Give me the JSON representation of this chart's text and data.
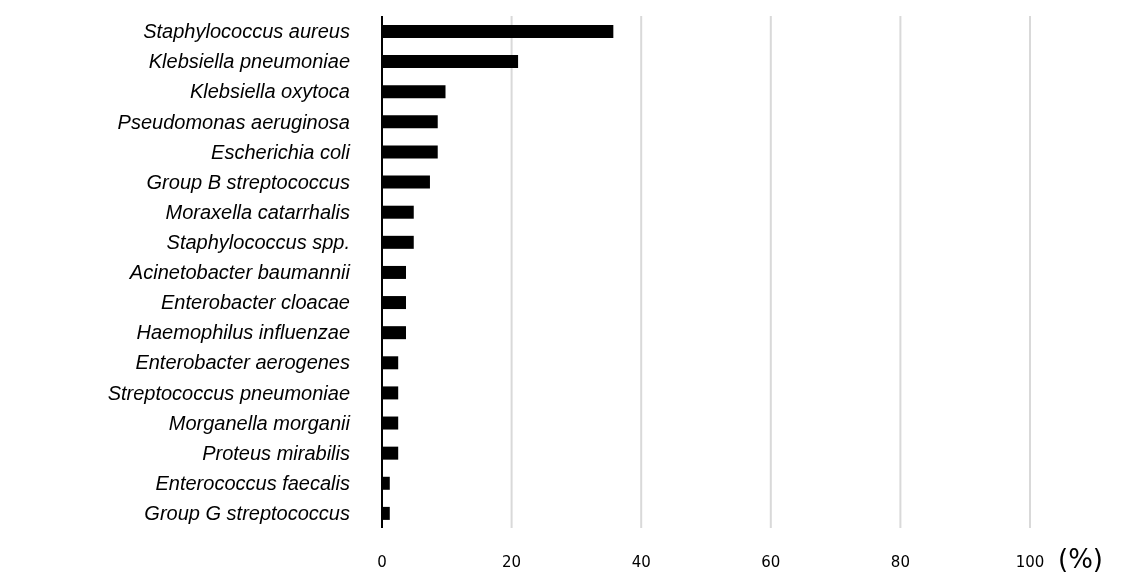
{
  "chart_data": {
    "type": "bar",
    "orientation": "horizontal",
    "xlabel": "(%)",
    "categories": [
      "Staphylococcus aureus",
      "Klebsiella pneumoniae",
      "Klebsiella oxytoca",
      "Pseudomonas aeruginosa",
      "Escherichia coli",
      "Group B streptococcus",
      "Moraxella catarrhalis",
      "Staphylococcus spp.",
      "Acinetobacter baumannii",
      "Enterobacter cloacae",
      "Haemophilus influenzae",
      "Enterobacter aerogenes",
      "Streptococcus pneumoniae",
      "Morganella morganii",
      "Proteus mirabilis",
      "Enterococcus faecalis",
      "Group G streptococcus"
    ],
    "values": [
      35.7,
      21.0,
      9.8,
      8.6,
      8.6,
      7.4,
      4.9,
      4.9,
      3.7,
      3.7,
      3.7,
      2.5,
      2.5,
      2.5,
      2.5,
      1.2,
      1.2
    ],
    "color": "#000000",
    "xlim": [
      0,
      100
    ],
    "xticks": [
      0,
      20,
      40,
      60,
      80,
      100
    ],
    "grid": "x"
  }
}
